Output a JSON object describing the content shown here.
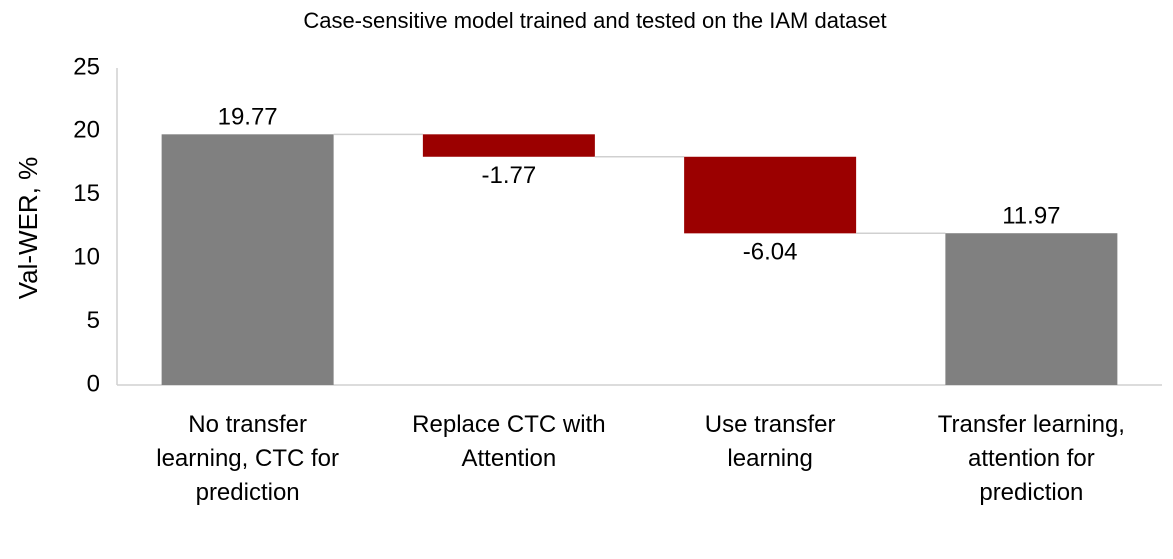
{
  "chart_data": {
    "type": "waterfall",
    "title": "Case-sensitive model trained and tested on the IAM dataset",
    "y_label": "Val-WER, %",
    "categories": [
      "No transfer learning, CTC for prediction",
      "Replace CTC with Attention",
      "Use transfer learning",
      "Transfer learning, attention for prediction"
    ],
    "values": [
      19.77,
      -1.77,
      -6.04,
      11.97
    ],
    "measure": [
      "total",
      "relative",
      "relative",
      "total"
    ],
    "total_color": "#808080",
    "decrease_color": "#9b0000",
    "increase_color": "#4472c4",
    "ylim": [
      0,
      25
    ],
    "yticks": [
      0,
      5,
      10,
      15,
      20,
      25
    ],
    "grid": false
  }
}
